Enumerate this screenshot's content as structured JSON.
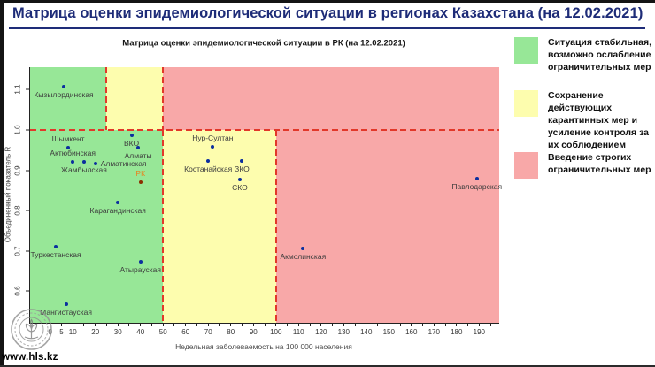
{
  "title": "Матрица оценки эпидемиологической ситуации в регионах Казахстана (на 12.02.2021)",
  "watermark": {
    "url": "www.hls.kz",
    "logo": "hls-tree-emblem"
  },
  "legend": {
    "items": [
      {
        "color": "#97e797",
        "text": "Ситуация стабильная, возможно ослабление ограничительных мер"
      },
      {
        "color": "#fdfdae",
        "text": "Сохранение действующих карантинных мер и усиление контроля за их соблюдением"
      },
      {
        "color": "#f8a8a8",
        "text": "Введение строгих ограничительных мер"
      }
    ]
  },
  "chart_data": {
    "type": "scatter",
    "title": "Матрица оценки эпидемиологической ситуации в РК (на 12.02.2021)",
    "xlabel": "Недельная заболеваемость на 100 000 населения",
    "ylabel": "Объединенный показатель R",
    "xlim": [
      -8.9,
      198.9
    ],
    "ylim": [
      0.521,
      1.156
    ],
    "x_ticks_labeled": [
      0,
      5,
      10,
      20,
      30,
      40,
      50,
      60,
      70,
      80,
      90,
      100,
      110,
      120,
      130,
      140,
      150,
      160,
      170,
      180,
      190
    ],
    "x_tick_minor_step": 5,
    "x_tick_minor_max": 195,
    "y_ticks": [
      0.6,
      0.7,
      0.8,
      0.9,
      1.0,
      1.1
    ],
    "grid": false,
    "legend_position": "right",
    "boundary_line_color": "#e2382a",
    "point_color": "#0b2f9e",
    "zones": {
      "r_threshold": 1.0,
      "upper_band": {
        "green_max": 25,
        "yellow_max": 50
      },
      "lower_band": {
        "green_max": 50,
        "yellow_max": 100
      },
      "colors": {
        "green": "#97e797",
        "yellow": "#fdfdae",
        "red": "#f8a8a8"
      }
    },
    "points": [
      {
        "name": "Кызылординская",
        "x": 6,
        "r": 1.108,
        "label_pos": "below"
      },
      {
        "name": "Шымкент",
        "x": 8,
        "r": 0.955,
        "label_pos": "above"
      },
      {
        "name": "Актюбинская",
        "x": 10,
        "r": 0.92,
        "label_pos": "above"
      },
      {
        "name": "Жамбылская",
        "x": 15,
        "r": 0.92,
        "label_pos": "below"
      },
      {
        "name": "Алматинская",
        "x": 20,
        "r": 0.917,
        "label_pos": "right"
      },
      {
        "name": "ВКО",
        "x": 36,
        "r": 0.986,
        "label_pos": "below"
      },
      {
        "name": "Алматы",
        "x": 39,
        "r": 0.956,
        "label_pos": "below"
      },
      {
        "name": "РК",
        "x": 40,
        "r": 0.87,
        "label_pos": "above",
        "point_color": "#8b2e00",
        "label_color": "#e8821e"
      },
      {
        "name": "Карагандинская",
        "x": 30,
        "r": 0.82,
        "label_pos": "below"
      },
      {
        "name": "Нур-Султан",
        "x": 72,
        "r": 0.958,
        "label_pos": "above"
      },
      {
        "name": "Костанайская",
        "x": 70,
        "r": 0.923,
        "label_pos": "below"
      },
      {
        "name": "ЗКО",
        "x": 85,
        "r": 0.923,
        "label_pos": "below"
      },
      {
        "name": "СКО",
        "x": 84,
        "r": 0.878,
        "label_pos": "below"
      },
      {
        "name": "Акмолинская",
        "x": 112,
        "r": 0.705,
        "label_pos": "below"
      },
      {
        "name": "Павлодарская",
        "x": 189,
        "r": 0.88,
        "label_pos": "below"
      },
      {
        "name": "Туркестанская",
        "x": 2.5,
        "r": 0.71,
        "label_pos": "below"
      },
      {
        "name": "Атырауская",
        "x": 40,
        "r": 0.673,
        "label_pos": "below"
      },
      {
        "name": "Мангистауская",
        "x": 7,
        "r": 0.567,
        "label_pos": "below"
      }
    ]
  }
}
